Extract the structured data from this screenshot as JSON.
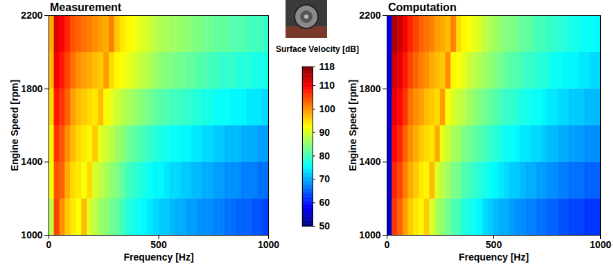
{
  "chart_data": {
    "type": "heatmap",
    "xlabel": "Frequency [Hz]",
    "ylabel": "Engine Speed [rpm]",
    "xlim": [
      0,
      1000
    ],
    "xticks": [
      0,
      500,
      1000
    ],
    "ylim": [
      1000,
      2200
    ],
    "yticks": [
      1000,
      1400,
      1800,
      2200
    ],
    "colorbar_label": "Surface Velocity [dB]",
    "colorbar_range": [
      50,
      118
    ],
    "colorbar_ticks": [
      50,
      60,
      70,
      80,
      90,
      100,
      110,
      118
    ],
    "x_bins": [
      0,
      25,
      50,
      75,
      100,
      125,
      150,
      175,
      200,
      225,
      250,
      275,
      300,
      325,
      350,
      375,
      400,
      425,
      450,
      475,
      500,
      525,
      550,
      575,
      600,
      625,
      650,
      675,
      700,
      725,
      750,
      775,
      800,
      825,
      850,
      875,
      900,
      925,
      950,
      975,
      1000
    ],
    "y_bins": [
      1000,
      1200,
      1400,
      1600,
      1800,
      2000,
      2200
    ],
    "panels": [
      {
        "title": "Measurement",
        "cells": [
          [
            88,
            105,
            100,
            96,
            94,
            92,
            97,
            90,
            88,
            86,
            85,
            83,
            82,
            80,
            78,
            77,
            76,
            75,
            74,
            73,
            72,
            72,
            71,
            70,
            70,
            69,
            69,
            68,
            68,
            68,
            67,
            67,
            66,
            66,
            65,
            65,
            65,
            64,
            64,
            63
          ],
          [
            92,
            104,
            103,
            98,
            95,
            94,
            92,
            95,
            90,
            88,
            87,
            85,
            84,
            82,
            80,
            79,
            78,
            77,
            76,
            75,
            75,
            74,
            73,
            73,
            72,
            72,
            71,
            71,
            70,
            70,
            69,
            69,
            68,
            68,
            68,
            67,
            67,
            67,
            66,
            66
          ],
          [
            93,
            106,
            104,
            100,
            97,
            95,
            94,
            93,
            96,
            91,
            89,
            88,
            86,
            85,
            83,
            82,
            81,
            80,
            79,
            78,
            77,
            77,
            76,
            76,
            75,
            75,
            74,
            74,
            73,
            73,
            72,
            72,
            71,
            71,
            71,
            70,
            70,
            70,
            69,
            69
          ],
          [
            95,
            108,
            106,
            103,
            99,
            97,
            96,
            95,
            94,
            97,
            93,
            91,
            89,
            88,
            87,
            86,
            85,
            84,
            83,
            82,
            81,
            81,
            80,
            80,
            79,
            79,
            78,
            78,
            77,
            77,
            76,
            76,
            76,
            75,
            75,
            75,
            74,
            74,
            74,
            73
          ],
          [
            97,
            110,
            108,
            105,
            102,
            100,
            99,
            98,
            97,
            96,
            99,
            95,
            93,
            92,
            91,
            90,
            89,
            88,
            87,
            86,
            85,
            84,
            84,
            83,
            83,
            82,
            82,
            81,
            81,
            80,
            80,
            79,
            79,
            79,
            78,
            78,
            78,
            77,
            77,
            77
          ],
          [
            98,
            112,
            110,
            107,
            104,
            103,
            102,
            101,
            100,
            99,
            98,
            101,
            96,
            94,
            93,
            92,
            91,
            90,
            89,
            88,
            87,
            87,
            86,
            86,
            85,
            85,
            84,
            84,
            83,
            83,
            82,
            82,
            82,
            81,
            81,
            81,
            80,
            80,
            80,
            79
          ]
        ]
      },
      {
        "title": "Computation",
        "cells": [
          [
            55,
            106,
            103,
            99,
            96,
            94,
            93,
            96,
            90,
            87,
            85,
            83,
            81,
            80,
            78,
            77,
            76,
            75,
            73,
            72,
            71,
            70,
            70,
            69,
            68,
            68,
            67,
            67,
            66,
            66,
            65,
            65,
            64,
            64,
            63,
            63,
            63,
            62,
            62,
            62
          ],
          [
            55,
            107,
            105,
            101,
            98,
            96,
            94,
            93,
            97,
            90,
            88,
            86,
            84,
            83,
            81,
            80,
            79,
            78,
            77,
            76,
            75,
            74,
            73,
            72,
            72,
            71,
            70,
            70,
            69,
            69,
            68,
            68,
            67,
            67,
            66,
            66,
            66,
            65,
            65,
            65
          ],
          [
            55,
            109,
            107,
            103,
            100,
            98,
            96,
            95,
            94,
            98,
            91,
            89,
            87,
            86,
            84,
            83,
            82,
            81,
            80,
            79,
            78,
            77,
            76,
            76,
            75,
            74,
            74,
            73,
            73,
            72,
            71,
            71,
            70,
            70,
            69,
            69,
            69,
            68,
            68,
            68
          ],
          [
            56,
            111,
            109,
            106,
            102,
            100,
            99,
            97,
            96,
            95,
            99,
            92,
            90,
            89,
            88,
            86,
            85,
            84,
            83,
            82,
            81,
            80,
            79,
            79,
            78,
            77,
            77,
            76,
            76,
            75,
            74,
            74,
            73,
            73,
            72,
            72,
            72,
            71,
            71,
            71
          ],
          [
            56,
            113,
            111,
            108,
            105,
            103,
            101,
            100,
            98,
            97,
            96,
            100,
            93,
            92,
            91,
            89,
            88,
            87,
            86,
            85,
            84,
            83,
            82,
            81,
            81,
            80,
            79,
            79,
            78,
            78,
            77,
            76,
            76,
            75,
            75,
            75,
            74,
            74,
            73,
            73
          ],
          [
            57,
            115,
            113,
            110,
            107,
            105,
            103,
            102,
            101,
            99,
            98,
            97,
            101,
            95,
            93,
            92,
            91,
            90,
            88,
            87,
            86,
            85,
            84,
            84,
            83,
            82,
            82,
            81,
            80,
            80,
            79,
            79,
            78,
            78,
            77,
            77,
            76,
            76,
            76,
            75
          ]
        ]
      }
    ]
  }
}
